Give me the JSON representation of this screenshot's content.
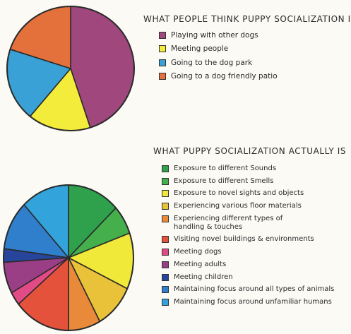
{
  "chart_data": [
    {
      "type": "pie",
      "title": "WHAT PEOPLE THINK PUPPY SOCIALIZATION IS",
      "legend_position": "right",
      "slices": [
        {
          "label": "Playing with other dogs",
          "value": 45,
          "color": "#a0477e"
        },
        {
          "label": "Meeting people",
          "value": 16,
          "color": "#f3ec3a"
        },
        {
          "label": "Going to the dog park",
          "value": 19,
          "color": "#3aa1d6"
        },
        {
          "label": "Going to a dog friendly patio",
          "value": 20,
          "color": "#e4713c"
        }
      ]
    },
    {
      "type": "pie",
      "title": "WHAT PUPPY SOCIALIZATION ACTUALLY IS",
      "legend_position": "right",
      "slices": [
        {
          "label": "Exposure to different Sounds",
          "value": 13,
          "color": "#2fa04c"
        },
        {
          "label": "Exposure to different Smells",
          "value": 6.5,
          "color": "#45b04b"
        },
        {
          "label": "Exposure to novel sights and objects",
          "value": 12.5,
          "color": "#f1e93a"
        },
        {
          "label": "Experiencing various floor materials",
          "value": 10,
          "color": "#e9c23a"
        },
        {
          "label": "Experiencing different types of\nhandling & touches",
          "value": 8,
          "color": "#e88a3a"
        },
        {
          "label": "Visiting novel buildings & environments",
          "value": 14,
          "color": "#e4523c"
        },
        {
          "label": "Meeting dogs",
          "value": 3,
          "color": "#e24b86"
        },
        {
          "label": "Meeting adults",
          "value": 7,
          "color": "#9a3f86"
        },
        {
          "label": "Meeting children",
          "value": 3,
          "color": "#27459b"
        },
        {
          "label": "Maintaining focus around all types of animals",
          "value": 11,
          "color": "#2f7fcc"
        },
        {
          "label": "Maintaining focus around unfamiliar humans",
          "value": 12,
          "color": "#33a3db"
        }
      ]
    }
  ]
}
